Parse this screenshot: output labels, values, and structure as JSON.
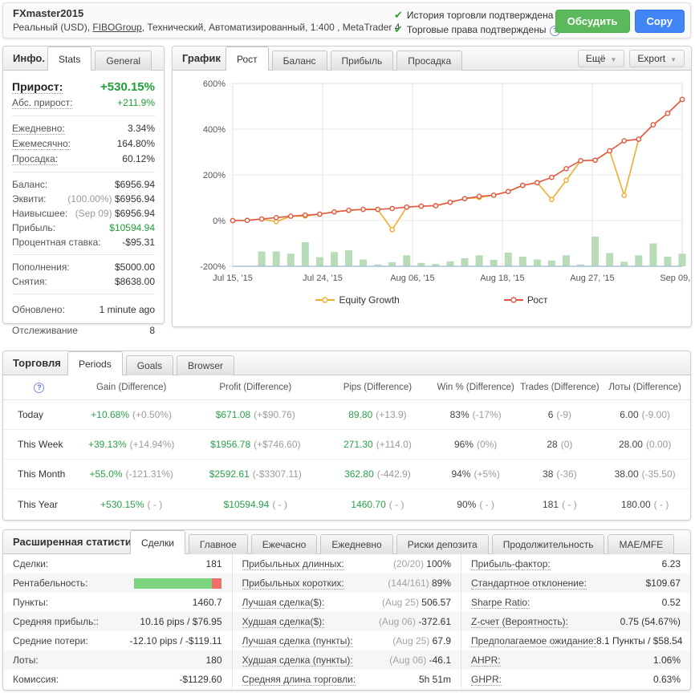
{
  "colors": {
    "growth_line": "#e25840",
    "equity_line": "#f0ad2e",
    "bars": "#b7dcb7",
    "green_value": "#1fa138",
    "discuss_button": "#5cb85c",
    "copy_button": "#4285f4"
  },
  "header": {
    "title": "FXmaster2015",
    "subtitle_pre": "Реальный (USD), ",
    "subtitle_link": "FIBOGroup",
    "subtitle_post": ", Технический, Автоматизированный, 1:400 , MetaTrader 4",
    "badges": [
      {
        "text": "История торговли подтверждена"
      },
      {
        "text": "Торговые права подтверждены"
      }
    ],
    "discuss_label": "Обсудить",
    "copy_label": "Copy"
  },
  "info": {
    "title": "Инфо.",
    "tabs": [
      {
        "label": "Stats",
        "active": true
      },
      {
        "label": "General",
        "active": false
      }
    ],
    "groups": [
      [
        {
          "label": "Прирост:",
          "value": "+530.15%",
          "color": "green",
          "dotted": true,
          "big": true
        },
        {
          "label": "Абс. прирост:",
          "value": "+211.9%",
          "color": "green",
          "dotted": true
        }
      ],
      [
        {
          "label": "Ежедневно:",
          "value": "3.34%",
          "dotted": true
        },
        {
          "label": "Ежемесячно:",
          "value": "164.80%",
          "dotted": true
        },
        {
          "label": "Просадка:",
          "value": "60.12%",
          "dotted": true
        }
      ],
      [
        {
          "label": "Баланс:",
          "value": "$6956.94"
        },
        {
          "label": "Эквити:",
          "prefix": "(100.00%)",
          "value": "$6956.94"
        },
        {
          "label": "Наивысшее:",
          "prefix": "(Sep 09)",
          "value": "$6956.94"
        },
        {
          "label": "Прибыль:",
          "value": "$10594.94",
          "color": "green"
        },
        {
          "label": "Процентная ставка:",
          "value": "-$95.31"
        }
      ],
      [
        {
          "label": "Пополнения:",
          "value": "$5000.00"
        },
        {
          "label": "Снятия:",
          "value": "$8638.00"
        }
      ],
      [
        {
          "label": "Обновлено:",
          "value": "1 minute ago"
        },
        {
          "label": "Отслеживание",
          "value": "8"
        }
      ]
    ]
  },
  "chart_panel": {
    "title": "График",
    "tabs": [
      {
        "label": "Рост",
        "active": true
      },
      {
        "label": "Баланс",
        "active": false
      },
      {
        "label": "Прибыль",
        "active": false
      },
      {
        "label": "Просадка",
        "active": false
      }
    ],
    "more_label": "Ещё",
    "export_label": "Export"
  },
  "chart_data": {
    "type": "line",
    "title": "Рост",
    "ylabel": "",
    "xlabel": "",
    "y_unit": "%",
    "ylim": [
      -200,
      600
    ],
    "y_ticks": [
      600,
      400,
      200,
      0,
      -200
    ],
    "x_tick_labels": [
      "Jul 15, '15",
      "Jul 24, '15",
      "Aug 06, '15",
      "Aug 18, '15",
      "Aug 27, '15",
      "Sep 09, '15"
    ],
    "grid": true,
    "legend_position": "bottom",
    "series": [
      {
        "name": "Equity Growth",
        "type": "line",
        "color": "#f0ad2e",
        "values": [
          0,
          1,
          7,
          -5,
          19,
          20,
          28,
          38,
          45,
          49,
          49,
          -40,
          59,
          63,
          65,
          80,
          96,
          101,
          111,
          127,
          154,
          166,
          92,
          176,
          262,
          264,
          305,
          110,
          356,
          419,
          469,
          530
        ]
      },
      {
        "name": "Рост",
        "type": "line",
        "color": "#e25840",
        "values": [
          0,
          1,
          7,
          13,
          19,
          24,
          28,
          38,
          45,
          49,
          49,
          53,
          59,
          63,
          65,
          80,
          96,
          106,
          111,
          127,
          154,
          166,
          189,
          227,
          262,
          264,
          305,
          349,
          356,
          419,
          469,
          530
        ]
      },
      {
        "name": "volume-bars",
        "type": "bar",
        "color": "#b7dcb7",
        "baseline": -200,
        "values": [
          2,
          0,
          65,
          65,
          55,
          105,
          40,
          62,
          70,
          30,
          8,
          18,
          48,
          15,
          10,
          22,
          35,
          48,
          28,
          60,
          42,
          30,
          25,
          48,
          8,
          130,
          58,
          20,
          48,
          100,
          42,
          55
        ]
      }
    ]
  },
  "trading": {
    "title": "Торговля",
    "tabs": [
      {
        "label": "Periods",
        "active": true
      },
      {
        "label": "Goals",
        "active": false
      },
      {
        "label": "Browser",
        "active": false
      }
    ],
    "help_icon": "?",
    "columns": [
      "Gain (Difference)",
      "Profit (Difference)",
      "Pips (Difference)",
      "Win % (Difference)",
      "Trades (Difference)",
      "Лоты (Difference)"
    ],
    "rows": [
      {
        "period": "Today",
        "cells": [
          {
            "main": "+10.68%",
            "diff": "(+0.50%)",
            "green": true
          },
          {
            "main": "$671.08",
            "diff": "(+$90.76)",
            "green": true
          },
          {
            "main": "89.80",
            "diff": "(+13.9)",
            "green": true
          },
          {
            "main": "83%",
            "diff": "(-17%)",
            "green": false
          },
          {
            "main": "6",
            "diff": "(-9)",
            "green": false
          },
          {
            "main": "6.00",
            "diff": "(-9.00)",
            "green": false
          }
        ]
      },
      {
        "period": "This Week",
        "cells": [
          {
            "main": "+39.13%",
            "diff": "(+14.94%)",
            "green": true
          },
          {
            "main": "$1956.78",
            "diff": "(+$746.60)",
            "green": true
          },
          {
            "main": "271.30",
            "diff": "(+114.0)",
            "green": true
          },
          {
            "main": "96%",
            "diff": "(0%)",
            "green": false
          },
          {
            "main": "28",
            "diff": "(0)",
            "green": false
          },
          {
            "main": "28.00",
            "diff": "(0.00)",
            "green": false
          }
        ]
      },
      {
        "period": "This Month",
        "cells": [
          {
            "main": "+55.0%",
            "diff": "(-121.31%)",
            "green": true
          },
          {
            "main": "$2592.61",
            "diff": "(-$3307.11)",
            "green": true
          },
          {
            "main": "362.80",
            "diff": "(-442.9)",
            "green": true
          },
          {
            "main": "94%",
            "diff": "(+5%)",
            "green": false
          },
          {
            "main": "38",
            "diff": "(-36)",
            "green": false
          },
          {
            "main": "38.00",
            "diff": "(-35.50)",
            "green": false
          }
        ]
      },
      {
        "period": "This Year",
        "cells": [
          {
            "main": "+530.15%",
            "diff": "( - )",
            "green": true
          },
          {
            "main": "$10594.94",
            "diff": "( - )",
            "green": true
          },
          {
            "main": "1460.70",
            "diff": "( - )",
            "green": true
          },
          {
            "main": "90%",
            "diff": "( - )",
            "green": false
          },
          {
            "main": "181",
            "diff": "( - )",
            "green": false
          },
          {
            "main": "180.00",
            "diff": "( - )",
            "green": false
          }
        ]
      }
    ]
  },
  "advanced": {
    "title": "Расширенная статистика",
    "tabs": [
      {
        "label": "Сделки",
        "active": true
      },
      {
        "label": "Главное",
        "active": false
      },
      {
        "label": "Ежечасно",
        "active": false
      },
      {
        "label": "Ежедневно",
        "active": false
      },
      {
        "label": "Риски депозита",
        "active": false
      },
      {
        "label": "Продолжительность",
        "active": false
      },
      {
        "label": "MAE/MFE",
        "active": false
      }
    ],
    "col1": [
      {
        "label": "Сделки:",
        "value": "181"
      },
      {
        "label": "Рентабельность:",
        "bar": {
          "green_pct": 89,
          "red_pct": 11
        }
      },
      {
        "label": "Пункты:",
        "value": "1460.7"
      },
      {
        "label": "Средняя прибыль::",
        "value": "10.16 pips / $76.95"
      },
      {
        "label": "Средние потери:",
        "value": "-12.10 pips / -$119.11"
      },
      {
        "label": "Лоты:",
        "value": "180"
      },
      {
        "label": "Комиссия:",
        "value": "-$1129.60"
      }
    ],
    "col2": [
      {
        "label": "Прибыльных длинных:",
        "gray": "(20/20)",
        "value": "100%",
        "dotted": true
      },
      {
        "label": "Прибыльных коротких:",
        "gray": "(144/161)",
        "value": "89%",
        "dotted": true
      },
      {
        "label": "Лучшая сделка($):",
        "gray": "(Aug 25)",
        "value": "506.57",
        "dotted": true
      },
      {
        "label": "Худшая сделка($):",
        "gray": "(Aug 06)",
        "value": "-372.61",
        "dotted": true
      },
      {
        "label": "Лучшая сделка (пункты):",
        "gray": "(Aug 25)",
        "value": "67.9",
        "dotted": true
      },
      {
        "label": "Худшая сделка (пункты):",
        "gray": "(Aug 06)",
        "value": "-46.1",
        "dotted": true
      },
      {
        "label": "Средняя длина торговли:",
        "value": "5h 51m",
        "dotted": true
      }
    ],
    "col3": [
      {
        "label": "Прибыль-фактор:",
        "value": "6.23",
        "dotted": true
      },
      {
        "label": "Стандартное отклонение:",
        "value": "$109.67",
        "dotted": true
      },
      {
        "label": "Sharpe Ratio:",
        "value": "0.52",
        "dotted": true
      },
      {
        "label": "Z-счет (Вероятность):",
        "value": "0.75 (54.67%)",
        "dotted": true
      },
      {
        "label": "Предполагаемое ожидание:",
        "value": "8.1 Пункты / $58.54",
        "dotted": true
      },
      {
        "label": "AHPR:",
        "value": "1.06%",
        "dotted": true
      },
      {
        "label": "GHPR:",
        "value": "0.63%",
        "dotted": true
      }
    ]
  }
}
